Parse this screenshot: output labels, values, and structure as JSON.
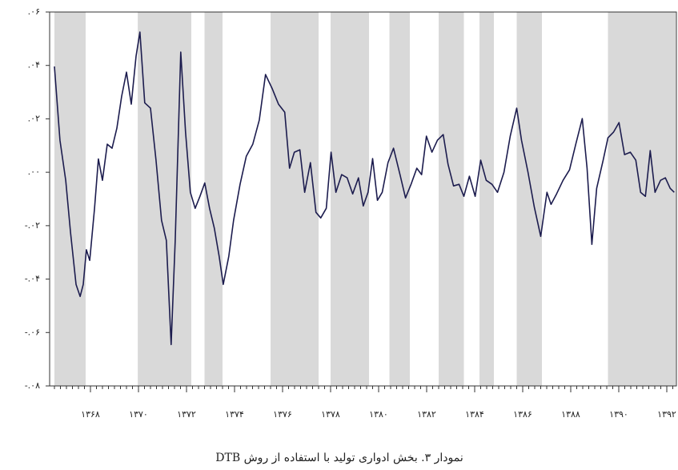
{
  "chart_data": {
    "type": "line",
    "caption": "نمودار ۳. بخش ادواری تولید با استفاده از روش DTB",
    "x": [
      1366.5,
      1366.73,
      1366.97,
      1367.17,
      1367.4,
      1367.57,
      1367.7,
      1367.83,
      1367.97,
      1368.17,
      1368.33,
      1368.5,
      1368.7,
      1368.9,
      1369.1,
      1369.3,
      1369.5,
      1369.7,
      1369.9,
      1370.06,
      1370.26,
      1370.5,
      1370.73,
      1370.96,
      1371.16,
      1371.36,
      1371.53,
      1371.76,
      1371.96,
      1372.16,
      1372.36,
      1372.56,
      1372.76,
      1372.96,
      1373.16,
      1373.36,
      1373.53,
      1373.76,
      1373.96,
      1374.23,
      1374.49,
      1374.76,
      1375.03,
      1375.29,
      1375.56,
      1375.83,
      1376.09,
      1376.29,
      1376.49,
      1376.72,
      1376.92,
      1377.16,
      1377.39,
      1377.59,
      1377.82,
      1378.02,
      1378.22,
      1378.46,
      1378.69,
      1378.92,
      1379.16,
      1379.36,
      1379.56,
      1379.75,
      1379.95,
      1380.15,
      1380.39,
      1380.62,
      1380.89,
      1381.12,
      1381.35,
      1381.59,
      1381.79,
      1381.99,
      1382.22,
      1382.45,
      1382.69,
      1382.89,
      1383.12,
      1383.35,
      1383.55,
      1383.78,
      1384.02,
      1384.25,
      1384.48,
      1384.72,
      1384.95,
      1385.22,
      1385.48,
      1385.75,
      1385.95,
      1386.22,
      1386.48,
      1386.75,
      1387.01,
      1387.18,
      1387.41,
      1387.68,
      1387.95,
      1388.21,
      1388.48,
      1388.68,
      1388.88,
      1389.08,
      1389.35,
      1389.55,
      1389.78,
      1390.01,
      1390.24,
      1390.48,
      1390.71,
      1390.91,
      1391.11,
      1391.31,
      1391.51,
      1391.74,
      1391.94,
      1392.14,
      1392.31
    ],
    "series": [
      {
        "color": "#1c1c4e",
        "values": [
          0.0396,
          0.012,
          -0.003,
          -0.0225,
          -0.042,
          -0.0465,
          -0.042,
          -0.029,
          -0.033,
          -0.0135,
          0.005,
          -0.003,
          0.0105,
          0.009,
          0.0165,
          0.0285,
          0.0375,
          0.0255,
          0.0435,
          0.0525,
          0.026,
          0.024,
          0.0045,
          -0.018,
          -0.0255,
          -0.0645,
          -0.0255,
          0.045,
          0.015,
          -0.0075,
          -0.0135,
          -0.009,
          -0.004,
          -0.0135,
          -0.021,
          -0.0315,
          -0.042,
          -0.0315,
          -0.018,
          -0.0045,
          0.006,
          0.0105,
          0.0195,
          0.0366,
          0.0315,
          0.0255,
          0.0225,
          0.0015,
          0.0075,
          0.0084,
          -0.0075,
          0.0036,
          -0.015,
          -0.0171,
          -0.0135,
          0.0075,
          -0.0075,
          -0.0009,
          -0.0021,
          -0.0081,
          -0.0021,
          -0.0126,
          -0.0075,
          0.0051,
          -0.0105,
          -0.0075,
          0.0036,
          0.009,
          -0.0009,
          -0.0096,
          -0.0045,
          0.0015,
          -0.0009,
          0.0135,
          0.0075,
          0.012,
          0.0141,
          0.003,
          -0.0051,
          -0.0045,
          -0.009,
          -0.0015,
          -0.009,
          0.0045,
          -0.003,
          -0.0045,
          -0.0075,
          0,
          0.0135,
          0.024,
          0.012,
          0,
          -0.0129,
          -0.024,
          -0.0075,
          -0.012,
          -0.0081,
          -0.003,
          0.0009,
          0.0105,
          0.0201,
          0.0015,
          -0.027,
          -0.006,
          0.0045,
          0.0129,
          0.015,
          0.0186,
          0.0066,
          0.0075,
          0.0045,
          -0.0075,
          -0.009,
          0.0081,
          -0.0075,
          -0.003,
          -0.0021,
          -0.006,
          -0.0075
        ]
      }
    ],
    "shaded_color": "#d9d9d9",
    "shaded_periods": [
      [
        1366.5,
        1367.8
      ],
      [
        1369.97,
        1372.2
      ],
      [
        1372.75,
        1373.5
      ],
      [
        1375.5,
        1377.5
      ],
      [
        1378.0,
        1379.6
      ],
      [
        1380.45,
        1381.3
      ],
      [
        1382.5,
        1383.55
      ],
      [
        1384.2,
        1384.8
      ],
      [
        1385.75,
        1386.8
      ],
      [
        1389.55,
        1392.37
      ]
    ],
    "xlim": [
      1366.3,
      1392.4
    ],
    "xticks": [
      {
        "value": 1368,
        "label": "۱۳۶۸"
      },
      {
        "value": 1370,
        "label": "۱۳۷۰"
      },
      {
        "value": 1372,
        "label": "۱۳۷۲"
      },
      {
        "value": 1374,
        "label": "۱۳۷۴"
      },
      {
        "value": 1376,
        "label": "۱۳۷۶"
      },
      {
        "value": 1378,
        "label": "۱۳۷۸"
      },
      {
        "value": 1380,
        "label": "۱۳۸۰"
      },
      {
        "value": 1382,
        "label": "۱۳۸۲"
      },
      {
        "value": 1384,
        "label": "۱۳۸۴"
      },
      {
        "value": 1386,
        "label": "۱۳۸۶"
      },
      {
        "value": 1388,
        "label": "۱۳۸۸"
      },
      {
        "value": 1390,
        "label": "۱۳۹۰"
      },
      {
        "value": 1392,
        "label": "۱۳۹۲"
      }
    ],
    "ylim": [
      -0.08,
      0.06
    ],
    "yticks": [
      {
        "value": 0.06,
        "label": ".۰۶"
      },
      {
        "value": 0.04,
        "label": ".۰۴"
      },
      {
        "value": 0.02,
        "label": ".۰۲"
      },
      {
        "value": 0,
        "label": ".۰۰"
      },
      {
        "value": -0.02,
        "label": "-.۰۲"
      },
      {
        "value": -0.04,
        "label": "-.۰۴"
      },
      {
        "value": -0.06,
        "label": "-.۰۶"
      },
      {
        "value": -0.08,
        "label": "-.۰۸"
      }
    ]
  }
}
